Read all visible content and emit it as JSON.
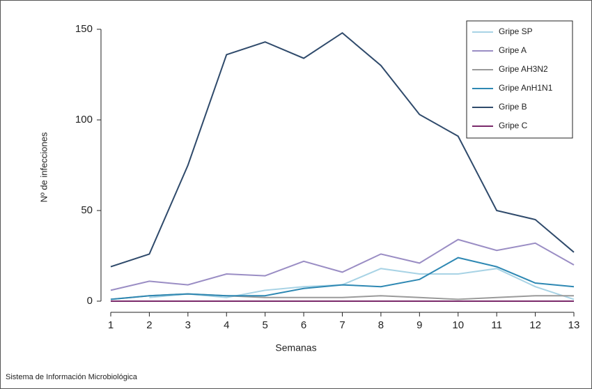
{
  "chart_data": {
    "type": "line",
    "y_label": "Nº de infecciones",
    "x_label": "Semanas",
    "source": "Sistema de Información Microbiológica",
    "x": [
      1,
      2,
      3,
      4,
      5,
      6,
      7,
      8,
      9,
      10,
      11,
      12,
      13
    ],
    "xlim": [
      1,
      13
    ],
    "xticks": [
      1,
      2,
      3,
      4,
      5,
      6,
      7,
      8,
      9,
      10,
      11,
      12,
      13
    ],
    "ylim": [
      0,
      150
    ],
    "yticks": [
      0,
      50,
      100,
      150
    ],
    "legend": "upper right",
    "series": [
      {
        "name": "Gripe SP",
        "color": "#a8d3e5",
        "values": [
          null,
          2,
          4,
          2,
          6,
          8,
          9,
          18,
          15,
          15,
          18,
          8,
          1
        ]
      },
      {
        "name": "Gripe A",
        "color": "#9a8dc4",
        "values": [
          6,
          11,
          9,
          15,
          14,
          22,
          16,
          26,
          21,
          34,
          28,
          32,
          20
        ]
      },
      {
        "name": "Gripe AH3N2",
        "color": "#9a9a9a",
        "values": [
          1,
          3,
          4,
          3,
          2,
          2,
          2,
          3,
          2,
          1,
          2,
          3,
          3
        ]
      },
      {
        "name": "Gripe AnH1N1",
        "color": "#2e88b3",
        "values": [
          1,
          3,
          4,
          3,
          3,
          7,
          9,
          8,
          12,
          24,
          19,
          10,
          8
        ]
      },
      {
        "name": "Gripe B",
        "color": "#2f4a6b",
        "values": [
          19,
          26,
          75,
          136,
          143,
          134,
          148,
          130,
          103,
          91,
          50,
          45,
          27
        ]
      },
      {
        "name": "Gripe C",
        "color": "#7a2a6a",
        "values": [
          0,
          0,
          0,
          0,
          0,
          0,
          0,
          0,
          0,
          0,
          0,
          0,
          0
        ]
      }
    ]
  }
}
